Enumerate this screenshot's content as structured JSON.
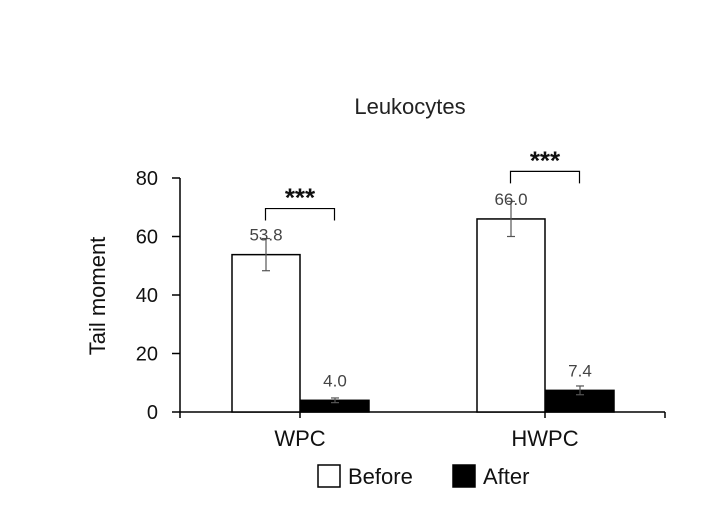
{
  "chart_data": {
    "type": "bar",
    "title": "Leukocytes",
    "xlabel": "",
    "ylabel": "Tail moment",
    "categories": [
      "WPC",
      "HWPC"
    ],
    "series": [
      {
        "name": "Before",
        "values": [
          53.8,
          66.0
        ],
        "labels": [
          "53.8",
          "66.0"
        ],
        "error": [
          5.5,
          6.0
        ],
        "color": "#ffffff",
        "stroke": "#000000"
      },
      {
        "name": "After",
        "values": [
          4.0,
          7.4
        ],
        "labels": [
          "4.0",
          "7.4"
        ],
        "error": [
          0.8,
          1.5
        ],
        "color": "#000000",
        "stroke": "#000000"
      }
    ],
    "ylim": [
      0,
      80
    ],
    "yticks": [
      0,
      20,
      40,
      60,
      80
    ],
    "significance": [
      {
        "category": "WPC",
        "label": "***"
      },
      {
        "category": "HWPC",
        "label": "***"
      }
    ],
    "legend_position": "bottom"
  }
}
